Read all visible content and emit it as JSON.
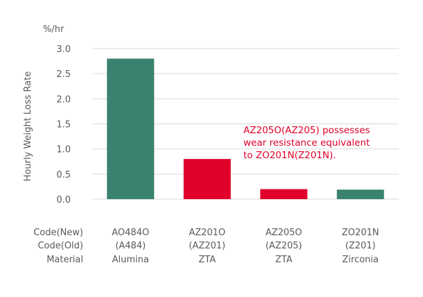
{
  "chart_data": {
    "type": "bar",
    "unit_label": "%/hr",
    "ylabel": "Hourly Weight Loss Rate",
    "ylim": [
      0,
      3.0
    ],
    "yticks": [
      "0.0",
      "0.5",
      "1.0",
      "1.5",
      "2.0",
      "2.5",
      "3.0"
    ],
    "grid": true,
    "row_labels": [
      "Code(New)",
      "Code(Old)",
      "Material"
    ],
    "categories": [
      {
        "code_new": "AO484O",
        "code_old": "(A484)",
        "material": "Alumina",
        "value": 2.8,
        "color": "#3a8270"
      },
      {
        "code_new": "AZ201O",
        "code_old": "(AZ201)",
        "material": "ZTA",
        "value": 0.8,
        "color": "#e0002a"
      },
      {
        "code_new": "AZ205O",
        "code_old": "(AZ205)",
        "material": "ZTA",
        "value": 0.2,
        "color": "#e0002a"
      },
      {
        "code_new": "ZO201N",
        "code_old": "(Z201)",
        "material": "Zirconia",
        "value": 0.19,
        "color": "#3a8270"
      }
    ],
    "annotation": [
      "AZ205O(AZ205) possesses",
      "wear resistance equivalent",
      "to ZO201N(Z201N)."
    ]
  }
}
